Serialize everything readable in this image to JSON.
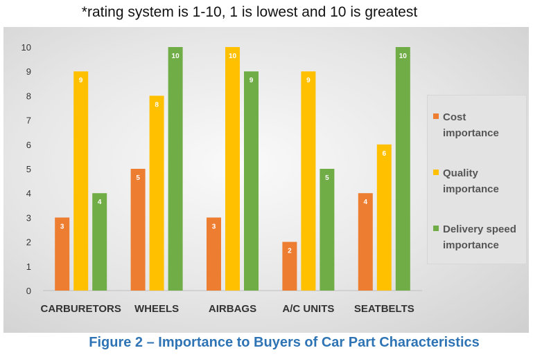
{
  "note": "*rating system is 1-10, 1 is lowest and 10 is greatest",
  "caption": "Figure 2 – Importance to Buyers of Car Part Characteristics",
  "colors": {
    "cost": "#ed7d31",
    "quality": "#ffc000",
    "delivery": "#70ad47",
    "label": "#ffffff",
    "axis_text": "#333333"
  },
  "chart_data": {
    "type": "bar",
    "categories": [
      "CARBURETORS",
      "WHEELS",
      "AIRBAGS",
      "A/C UNITS",
      "SEATBELTS"
    ],
    "series": [
      {
        "name": "Cost importance",
        "values": [
          3,
          5,
          3,
          2,
          4
        ]
      },
      {
        "name": "Quality importance",
        "values": [
          9,
          8,
          10,
          9,
          6
        ]
      },
      {
        "name": "Delivery speed importance",
        "values": [
          4,
          10,
          9,
          5,
          10
        ]
      }
    ],
    "ylim": [
      0,
      10
    ],
    "yticks": [
      "0",
      "1",
      "2",
      "3",
      "4",
      "5",
      "6",
      "7",
      "8",
      "9",
      "10"
    ],
    "legend": {
      "placement": "right",
      "items": [
        {
          "line1": "Cost",
          "line2": "importance"
        },
        {
          "line1": "Quality",
          "line2": "importance"
        },
        {
          "line1": "Delivery speed",
          "line2": "importance"
        }
      ]
    },
    "data_labels": true,
    "grid": false
  }
}
